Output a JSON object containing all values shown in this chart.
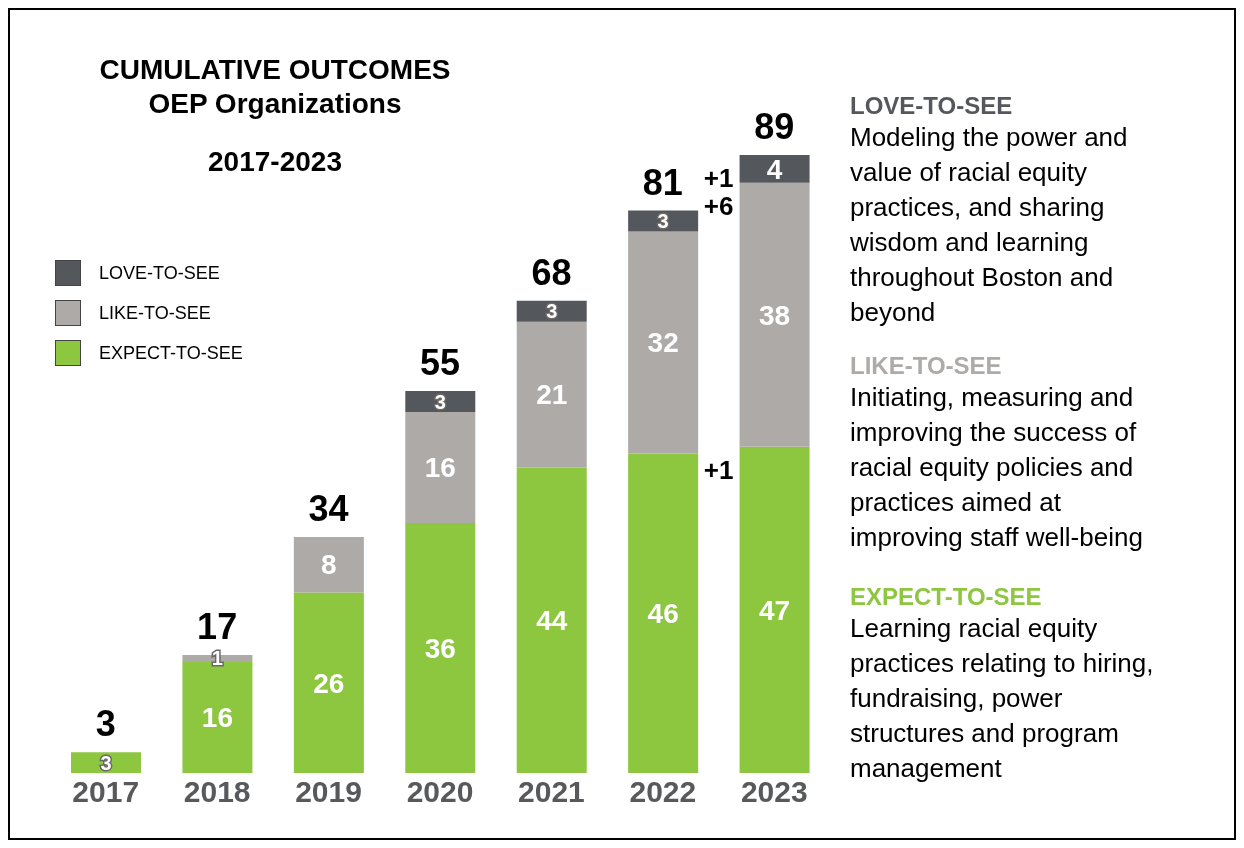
{
  "chart_data": {
    "type": "bar",
    "stacked": true,
    "title": "CUMULATIVE OUTCOMES",
    "subtitle": "OEP Organizations\n2017-2023",
    "categories": [
      "2017",
      "2018",
      "2019",
      "2020",
      "2021",
      "2022",
      "2023"
    ],
    "series": [
      {
        "name": "EXPECT-TO-SEE",
        "color": "#8dc63f",
        "values": [
          3,
          16,
          26,
          36,
          44,
          46,
          47
        ]
      },
      {
        "name": "LIKE-TO-SEE",
        "color": "#aeaaa8",
        "values": [
          null,
          1,
          8,
          16,
          21,
          32,
          38
        ]
      },
      {
        "name": "LOVE-TO-SEE",
        "color": "#54575c",
        "values": [
          null,
          null,
          null,
          3,
          3,
          3,
          4
        ]
      }
    ],
    "data_labels": true,
    "totals": [
      "3",
      "17",
      "34",
      "55",
      "68",
      "81",
      "89"
    ],
    "annotations": [
      "+1",
      "+6",
      "+1",
      "Learning racial equity practices relating to hiring, fundraising, power structures and program management",
      "Initiating, measuring and improving the success of racial equity policies and practices aimed at improving staff well-being",
      "Modeling the power and value of racial equity practices, and  sharing wisdom and learning throughout Boston and beyond"
    ],
    "grid": false,
    "legend": "top left"
  }
}
